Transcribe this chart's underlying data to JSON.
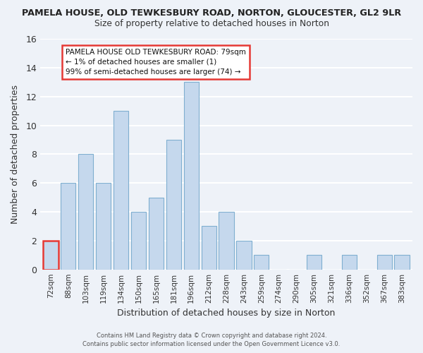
{
  "title_line1": "PAMELA HOUSE, OLD TEWKESBURY ROAD, NORTON, GLOUCESTER, GL2 9LR",
  "title_line2": "Size of property relative to detached houses in Norton",
  "xlabel": "Distribution of detached houses by size in Norton",
  "ylabel": "Number of detached properties",
  "bar_labels": [
    "72sqm",
    "88sqm",
    "103sqm",
    "119sqm",
    "134sqm",
    "150sqm",
    "165sqm",
    "181sqm",
    "196sqm",
    "212sqm",
    "228sqm",
    "243sqm",
    "259sqm",
    "274sqm",
    "290sqm",
    "305sqm",
    "321sqm",
    "336sqm",
    "352sqm",
    "367sqm",
    "383sqm"
  ],
  "bar_values": [
    2,
    6,
    8,
    6,
    11,
    4,
    5,
    9,
    13,
    3,
    4,
    2,
    1,
    0,
    0,
    1,
    0,
    1,
    0,
    1,
    1
  ],
  "bar_color": "#c5d8ed",
  "highlight_bar_index": 0,
  "highlight_edge_color": "#e53935",
  "bar_edge_color": "#7fafd0",
  "background_color": "#eef2f8",
  "grid_color": "#ffffff",
  "ylim": [
    0,
    16
  ],
  "yticks": [
    0,
    2,
    4,
    6,
    8,
    10,
    12,
    14,
    16
  ],
  "annotation_title": "PAMELA HOUSE OLD TEWKESBURY ROAD: 79sqm",
  "annotation_line2": "← 1% of detached houses are smaller (1)",
  "annotation_line3": "99% of semi-detached houses are larger (74) →",
  "annotation_box_edge": "#e53935",
  "footer_line1": "Contains HM Land Registry data © Crown copyright and database right 2024.",
  "footer_line2": "Contains public sector information licensed under the Open Government Licence v3.0."
}
